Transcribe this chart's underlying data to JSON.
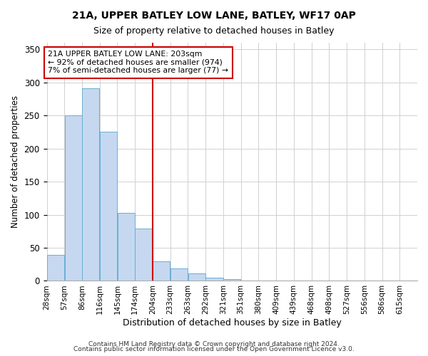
{
  "title": "21A, UPPER BATLEY LOW LANE, BATLEY, WF17 0AP",
  "subtitle": "Size of property relative to detached houses in Batley",
  "xlabel": "Distribution of detached houses by size in Batley",
  "ylabel": "Number of detached properties",
  "bar_values": [
    39,
    250,
    291,
    225,
    103,
    79,
    30,
    19,
    11,
    5,
    3,
    1,
    1,
    1,
    0,
    0,
    0,
    1
  ],
  "bar_labels": [
    "28sqm",
    "57sqm",
    "86sqm",
    "116sqm",
    "145sqm",
    "174sqm",
    "204sqm",
    "233sqm",
    "263sqm",
    "292sqm",
    "321sqm",
    "351sqm",
    "380sqm",
    "409sqm",
    "439sqm",
    "468sqm",
    "498sqm",
    "527sqm"
  ],
  "all_xtick_labels": [
    "28sqm",
    "57sqm",
    "86sqm",
    "116sqm",
    "145sqm",
    "174sqm",
    "204sqm",
    "233sqm",
    "263sqm",
    "292sqm",
    "321sqm",
    "351sqm",
    "380sqm",
    "409sqm",
    "439sqm",
    "468sqm",
    "498sqm",
    "527sqm",
    "556sqm",
    "586sqm",
    "615sqm"
  ],
  "bar_color": "#c5d8f0",
  "bar_edge_color": "#6aaed6",
  "marker_bin_index": 6,
  "marker_line_color": "#cc0000",
  "annotation_line1": "21A UPPER BATLEY LOW LANE: 203sqm",
  "annotation_line2": "← 92% of detached houses are smaller (974)",
  "annotation_line3": "7% of semi-detached houses are larger (77) →",
  "annotation_box_color": "#ffffff",
  "annotation_box_edge_color": "#cc0000",
  "ylim": [
    0,
    360
  ],
  "yticks": [
    0,
    50,
    100,
    150,
    200,
    250,
    300,
    350
  ],
  "footnote1": "Contains HM Land Registry data © Crown copyright and database right 2024.",
  "footnote2": "Contains public sector information licensed under the Open Government Licence v3.0.",
  "bin_width": 29,
  "num_xticks": 21
}
